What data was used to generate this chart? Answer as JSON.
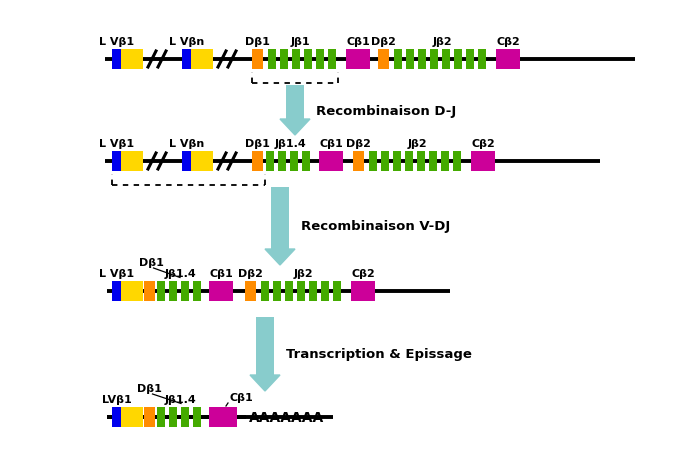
{
  "bg_color": "#ffffff",
  "colors": {
    "blue": "#0000EE",
    "yellow": "#FFD700",
    "orange": "#FF8C00",
    "green": "#44AA00",
    "magenta": "#CC0099",
    "line": "#000000",
    "arrow": "#88CCCC"
  },
  "arrow_label1": "Recombinaison D-J",
  "arrow_label2": "Recombinaison V-DJ",
  "arrow_label3": "Transcription & Epissage",
  "poly_label": "AAAAAAA",
  "row1_labels": [
    "L Vβ1",
    "L Vβn",
    "Dβ1",
    "Jβ1",
    "Cβ1",
    "Dβ2",
    "Jβ2",
    "Cβ2"
  ],
  "row2_labels": [
    "L Vβ1",
    "L Vβn",
    "Dβ1",
    "Jβ1.4",
    "Cβ1",
    "Dβ2",
    "Jβ2",
    "Cβ2"
  ],
  "row3_labels": [
    "L Vβ1",
    "Dβ1",
    "Jβ1.4",
    "Cβ1",
    "Dβ2",
    "Jβ2",
    "Cβ2"
  ],
  "row4_labels": [
    "LVβ1",
    "Dβ1",
    "Jβ1.4",
    "Cβ1"
  ]
}
